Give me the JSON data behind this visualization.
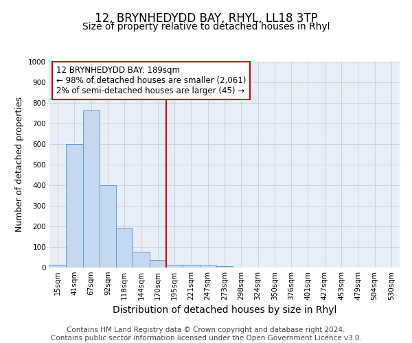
{
  "title": "12, BRYNHEDYDD BAY, RHYL, LL18 3TP",
  "subtitle": "Size of property relative to detached houses in Rhyl",
  "xlabel": "Distribution of detached houses by size in Rhyl",
  "ylabel": "Number of detached properties",
  "bar_labels": [
    "15sqm",
    "41sqm",
    "67sqm",
    "92sqm",
    "118sqm",
    "144sqm",
    "170sqm",
    "195sqm",
    "221sqm",
    "247sqm",
    "273sqm",
    "298sqm",
    "324sqm",
    "350sqm",
    "376sqm",
    "401sqm",
    "427sqm",
    "453sqm",
    "479sqm",
    "504sqm",
    "530sqm"
  ],
  "bar_values": [
    13,
    600,
    762,
    400,
    190,
    78,
    38,
    15,
    12,
    10,
    7,
    0,
    0,
    0,
    0,
    0,
    0,
    0,
    0,
    0,
    0
  ],
  "bar_color": "#c5d8f0",
  "bar_edge_color": "#5b9bd5",
  "subject_line_color": "#cc0000",
  "annotation_text": "12 BRYNHEDYDD BAY: 189sqm\n← 98% of detached houses are smaller (2,061)\n2% of semi-detached houses are larger (45) →",
  "annotation_box_color": "#cc0000",
  "ylim": [
    0,
    1000
  ],
  "yticks": [
    0,
    100,
    200,
    300,
    400,
    500,
    600,
    700,
    800,
    900,
    1000
  ],
  "grid_color": "#cccccc",
  "background_color": "#e8eef8",
  "footer_line1": "Contains HM Land Registry data © Crown copyright and database right 2024.",
  "footer_line2": "Contains public sector information licensed under the Open Government Licence v3.0.",
  "title_fontsize": 12,
  "subtitle_fontsize": 10,
  "xlabel_fontsize": 10,
  "ylabel_fontsize": 9,
  "tick_fontsize": 7.5,
  "annotation_fontsize": 8.5,
  "footer_fontsize": 7.5
}
